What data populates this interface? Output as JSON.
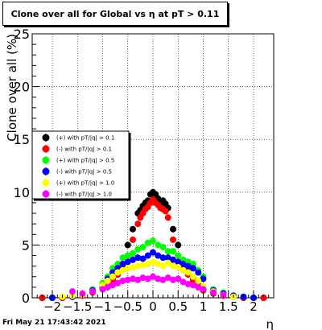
{
  "chart_data": {
    "type": "scatter",
    "title": "Clone  over all for Global vs   η at pT > 0.11",
    "xlabel": "η",
    "ylabel": "Clone  over all (%)",
    "xlim": [
      -2.4,
      2.4
    ],
    "ylim": [
      0,
      25
    ],
    "xticks": [
      -2,
      -1.5,
      -1,
      -0.5,
      0,
      0.5,
      1,
      1.5,
      2
    ],
    "xtick_labels": [
      "−2",
      "−1.5",
      "−1",
      "−0.5",
      "0",
      "0.5",
      "1",
      "1.5",
      "2"
    ],
    "yticks": [
      0,
      5,
      10,
      15,
      20,
      25
    ],
    "grid": true,
    "legend_position": "left-middle",
    "series": [
      {
        "name": "(+) with pT/|q| > 0.1",
        "color": "#000000",
        "x": [
          -2.2,
          -2.0,
          -1.8,
          -1.6,
          -1.4,
          -1.2,
          -1.0,
          -0.9,
          -0.8,
          -0.7,
          -0.6,
          -0.5,
          -0.4,
          -0.3,
          -0.25,
          -0.2,
          -0.15,
          -0.1,
          -0.05,
          0.0,
          0.05,
          0.1,
          0.15,
          0.2,
          0.25,
          0.3,
          0.4,
          0.5,
          0.6,
          0.7,
          0.8,
          0.9,
          1.0,
          1.2,
          1.4,
          1.6,
          1.8,
          2.0,
          2.2
        ],
        "y": [
          0,
          0,
          0,
          0.1,
          0.3,
          0.6,
          1.0,
          1.3,
          1.8,
          2.4,
          3.2,
          5.0,
          6.5,
          8.0,
          8.3,
          8.7,
          9.0,
          9.2,
          9.8,
          10.0,
          9.8,
          9.4,
          9.0,
          9.2,
          8.9,
          8.5,
          6.5,
          5.0,
          3.5,
          2.5,
          1.8,
          1.2,
          0.8,
          0.5,
          0.3,
          0.1,
          0,
          0,
          0
        ]
      },
      {
        "name": "(-) with pT/|q| > 0.1",
        "color": "#ff0000",
        "x": [
          -2.2,
          -2.0,
          -1.8,
          -1.6,
          -1.4,
          -1.2,
          -1.0,
          -0.9,
          -0.8,
          -0.7,
          -0.6,
          -0.5,
          -0.4,
          -0.3,
          -0.25,
          -0.2,
          -0.15,
          -0.1,
          -0.05,
          0.0,
          0.05,
          0.1,
          0.15,
          0.2,
          0.25,
          0.3,
          0.4,
          0.5,
          0.6,
          0.7,
          0.8,
          0.9,
          1.0,
          1.2,
          1.4,
          1.6,
          1.8,
          2.0,
          2.2
        ],
        "y": [
          0,
          0,
          0,
          0.1,
          0.2,
          0.5,
          0.9,
          1.2,
          1.6,
          2.2,
          3.0,
          4.0,
          5.5,
          7.0,
          7.6,
          8.0,
          8.4,
          8.6,
          9.0,
          9.3,
          9.0,
          8.8,
          8.5,
          8.4,
          8.2,
          7.6,
          5.5,
          4.0,
          3.0,
          2.2,
          1.6,
          1.1,
          0.7,
          0.4,
          0.2,
          0.1,
          0,
          0,
          0
        ]
      },
      {
        "name": "(+) with pT/|q| > 0.5",
        "color": "#00ff00",
        "x": [
          -2.0,
          -1.6,
          -1.4,
          -1.2,
          -1.0,
          -0.9,
          -0.8,
          -0.7,
          -0.6,
          -0.5,
          -0.4,
          -0.3,
          -0.2,
          -0.1,
          0.0,
          0.1,
          0.2,
          0.3,
          0.4,
          0.5,
          0.6,
          0.7,
          0.8,
          0.9,
          1.0,
          1.2,
          1.4,
          1.6,
          1.8,
          2.0
        ],
        "y": [
          0,
          0.1,
          0.4,
          0.8,
          1.4,
          2.0,
          2.8,
          3.2,
          3.8,
          4.0,
          4.2,
          4.6,
          4.8,
          5.2,
          5.4,
          5.0,
          4.8,
          4.4,
          4.4,
          4.0,
          3.6,
          3.4,
          3.2,
          2.6,
          2.0,
          0.8,
          0.5,
          0.2,
          0.1,
          0
        ]
      },
      {
        "name": "(-) with pT/|q| > 0.5",
        "color": "#0000ff",
        "x": [
          -2.0,
          -1.6,
          -1.4,
          -1.2,
          -1.0,
          -0.9,
          -0.8,
          -0.7,
          -0.6,
          -0.5,
          -0.4,
          -0.3,
          -0.2,
          -0.1,
          0.0,
          0.1,
          0.2,
          0.3,
          0.4,
          0.5,
          0.6,
          0.7,
          0.8,
          0.9,
          1.0,
          1.2,
          1.4,
          1.6,
          1.8,
          2.0
        ],
        "y": [
          0,
          0.1,
          0.3,
          0.7,
          1.2,
          1.8,
          2.4,
          2.8,
          3.2,
          3.4,
          3.6,
          3.8,
          3.7,
          4.0,
          4.3,
          4.0,
          3.8,
          3.8,
          3.6,
          3.4,
          3.2,
          3.0,
          2.8,
          2.4,
          1.8,
          0.7,
          0.4,
          0.2,
          0.1,
          0
        ]
      },
      {
        "name": "(+) with pT/|q| > 1.0",
        "color": "#ffff00",
        "x": [
          -1.8,
          -1.6,
          -1.4,
          -1.2,
          -1.0,
          -0.9,
          -0.8,
          -0.7,
          -0.6,
          -0.5,
          -0.4,
          -0.3,
          -0.2,
          -0.1,
          0.0,
          0.1,
          0.2,
          0.3,
          0.4,
          0.5,
          0.6,
          0.7,
          0.8,
          0.9,
          1.0,
          1.2,
          1.4,
          1.6
        ],
        "y": [
          0.1,
          0.2,
          0.3,
          0.6,
          1.2,
          1.6,
          2.0,
          2.4,
          2.6,
          2.8,
          2.9,
          3.0,
          3.1,
          3.2,
          3.4,
          3.2,
          3.0,
          3.3,
          3.0,
          2.9,
          2.6,
          2.4,
          2.0,
          1.6,
          1.1,
          0.6,
          0.3,
          0.1
        ]
      },
      {
        "name": "(-) with pT/|q| > 1.0",
        "color": "#ff00ff",
        "x": [
          -1.6,
          -1.4,
          -1.2,
          -1.0,
          -0.9,
          -0.8,
          -0.7,
          -0.6,
          -0.5,
          -0.4,
          -0.3,
          -0.2,
          -0.1,
          0.0,
          0.1,
          0.2,
          0.3,
          0.4,
          0.5,
          0.6,
          0.7,
          0.8,
          0.9,
          1.0,
          1.2,
          1.4
        ],
        "y": [
          0.6,
          0.4,
          0.6,
          0.8,
          1.0,
          1.2,
          1.4,
          1.6,
          1.7,
          1.8,
          1.7,
          1.9,
          1.8,
          2.0,
          1.8,
          1.7,
          1.9,
          1.7,
          1.8,
          1.5,
          1.3,
          1.2,
          1.0,
          0.8,
          0.5,
          0.3
        ]
      }
    ]
  },
  "footer_text": "Fri May 21 17:43:42 2021"
}
